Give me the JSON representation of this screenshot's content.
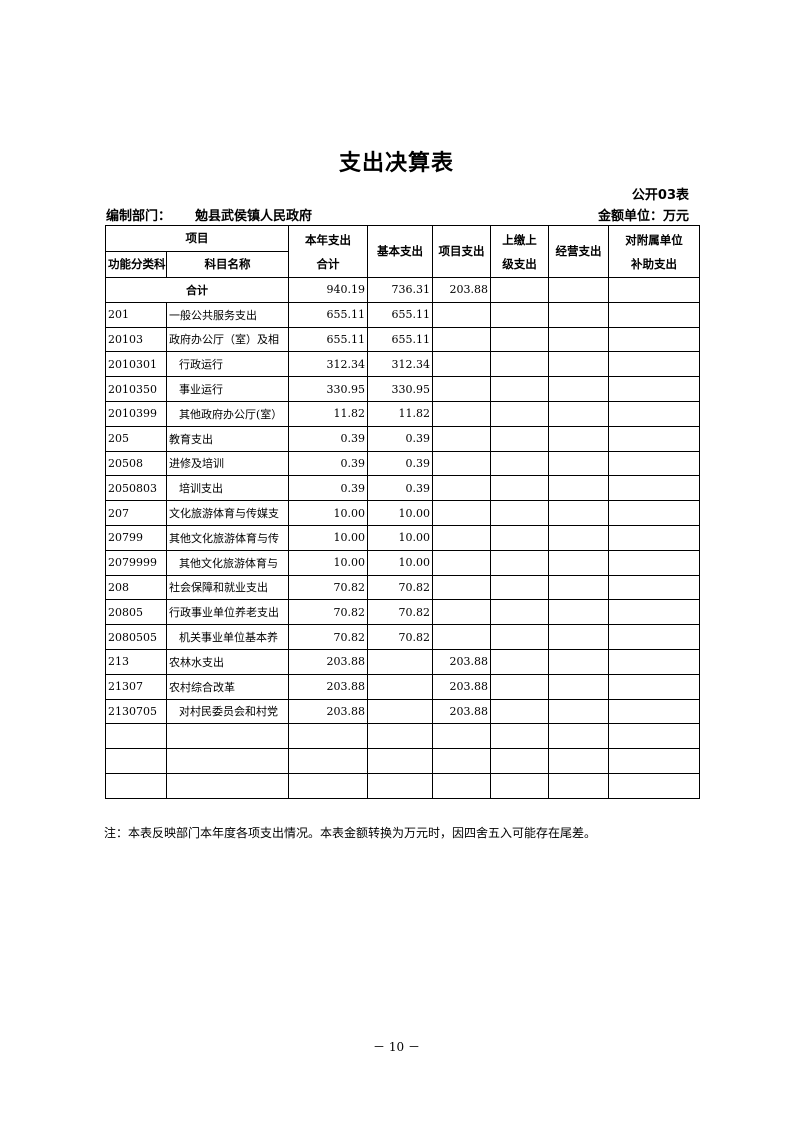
{
  "title": "支出决算表",
  "table_code": "公开03表",
  "dept_label": "编制部门：",
  "dept_name": "勉县武侯镇人民政府",
  "unit": "金额单位：万元",
  "headers": {
    "item": "项目",
    "func_code": "功能分类科",
    "subject_name": "科目名称",
    "total_l1": "本年支出",
    "total_l2": "合计",
    "basic": "基本支出",
    "project": "项目支出",
    "upper_l1": "上缴上",
    "upper_l2": "级支出",
    "operating": "经营支出",
    "sub_l1": "对附属单位",
    "sub_l2": "补助支出"
  },
  "total_row": {
    "label": "合计",
    "total": "940.19",
    "basic": "736.31",
    "project": "203.88"
  },
  "rows": [
    {
      "code": "201",
      "name": "一般公共服务支出",
      "total": "655.11",
      "basic": "655.11",
      "project": ""
    },
    {
      "code": "20103",
      "name": "政府办公厅（室）及相",
      "total": "655.11",
      "basic": "655.11",
      "project": ""
    },
    {
      "code": "2010301",
      "name": "行政运行",
      "total": "312.34",
      "basic": "312.34",
      "project": ""
    },
    {
      "code": "2010350",
      "name": "事业运行",
      "total": "330.95",
      "basic": "330.95",
      "project": ""
    },
    {
      "code": "2010399",
      "name": "其他政府办公厅(室）",
      "total": "11.82",
      "basic": "11.82",
      "project": ""
    },
    {
      "code": "205",
      "name": "教育支出",
      "total": "0.39",
      "basic": "0.39",
      "project": ""
    },
    {
      "code": "20508",
      "name": "进修及培训",
      "total": "0.39",
      "basic": "0.39",
      "project": ""
    },
    {
      "code": "2050803",
      "name": "培训支出",
      "total": "0.39",
      "basic": "0.39",
      "project": ""
    },
    {
      "code": "207",
      "name": "文化旅游体育与传媒支",
      "total": "10.00",
      "basic": "10.00",
      "project": ""
    },
    {
      "code": "20799",
      "name": "其他文化旅游体育与传",
      "total": "10.00",
      "basic": "10.00",
      "project": ""
    },
    {
      "code": "2079999",
      "name": "其他文化旅游体育与",
      "total": "10.00",
      "basic": "10.00",
      "project": ""
    },
    {
      "code": "208",
      "name": "社会保障和就业支出",
      "total": "70.82",
      "basic": "70.82",
      "project": ""
    },
    {
      "code": "20805",
      "name": "行政事业单位养老支出",
      "total": "70.82",
      "basic": "70.82",
      "project": ""
    },
    {
      "code": "2080505",
      "name": "机关事业单位基本养",
      "total": "70.82",
      "basic": "70.82",
      "project": ""
    },
    {
      "code": "213",
      "name": "农林水支出",
      "total": "203.88",
      "basic": "",
      "project": "203.88"
    },
    {
      "code": "21307",
      "name": "农村综合改革",
      "total": "203.88",
      "basic": "",
      "project": "203.88"
    },
    {
      "code": "2130705",
      "name": "对村民委员会和村党",
      "total": "203.88",
      "basic": "",
      "project": "203.88"
    }
  ],
  "note": "注：本表反映部门本年度各项支出情况。本表金额转换为万元时，因四舍五入可能存在尾差。",
  "page_number": "－ 10 －"
}
